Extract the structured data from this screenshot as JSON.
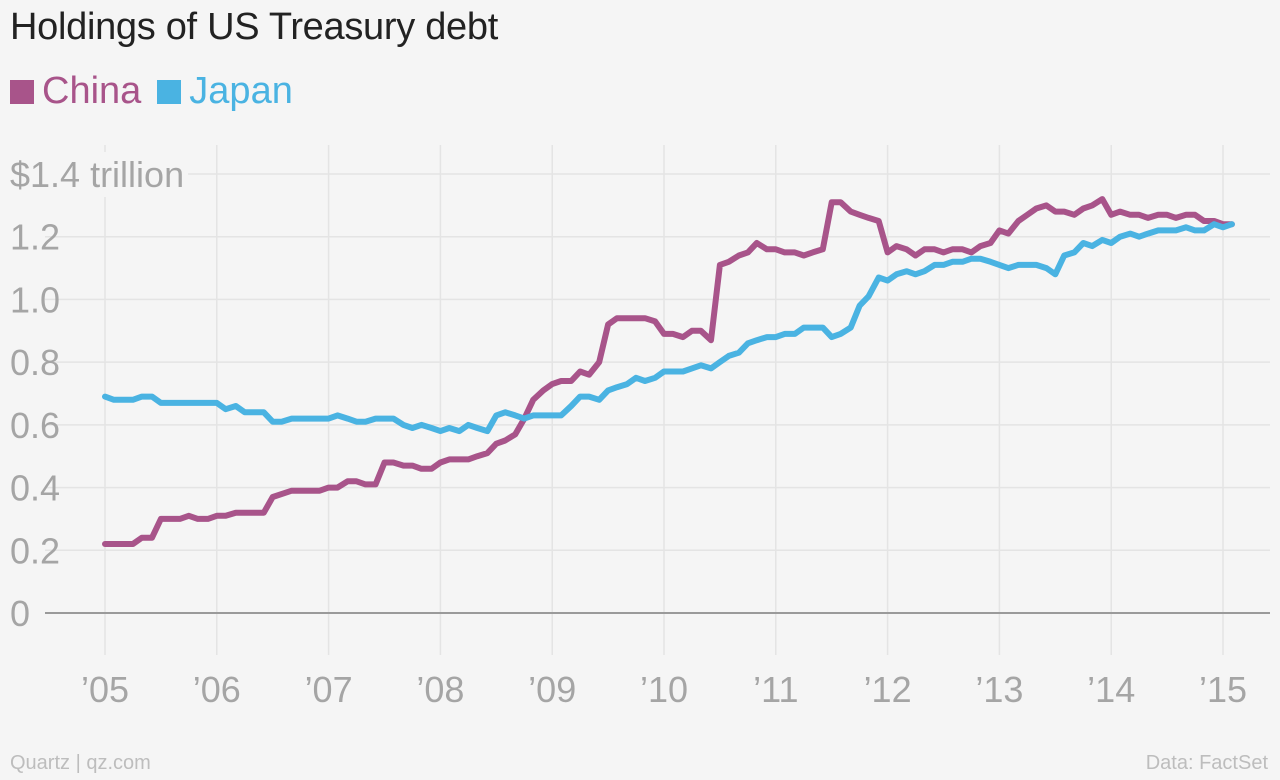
{
  "chart_data": {
    "type": "line",
    "title": "Holdings of US Treasury debt",
    "ylabel": "",
    "xlabel": "",
    "y_unit_label": "$1.4 trillion",
    "ylim": [
      0,
      1.4
    ],
    "xlim": [
      2004.9,
      2015.1
    ],
    "yticks": [
      {
        "value": 0,
        "label": "0"
      },
      {
        "value": 0.2,
        "label": "0.2"
      },
      {
        "value": 0.4,
        "label": "0.4"
      },
      {
        "value": 0.6,
        "label": "0.6"
      },
      {
        "value": 0.8,
        "label": "0.8"
      },
      {
        "value": 1.0,
        "label": "1.0"
      },
      {
        "value": 1.2,
        "label": "1.2"
      },
      {
        "value": 1.4,
        "label": "$1.4 trillion"
      }
    ],
    "xticks": [
      {
        "value": 2005,
        "label": "’05"
      },
      {
        "value": 2006,
        "label": "’06"
      },
      {
        "value": 2007,
        "label": "’07"
      },
      {
        "value": 2008,
        "label": "’08"
      },
      {
        "value": 2009,
        "label": "’09"
      },
      {
        "value": 2010,
        "label": "’10"
      },
      {
        "value": 2011,
        "label": "’11"
      },
      {
        "value": 2012,
        "label": "’12"
      },
      {
        "value": 2013,
        "label": "’13"
      },
      {
        "value": 2014,
        "label": "’14"
      },
      {
        "value": 2015,
        "label": "’15"
      }
    ],
    "grid": true,
    "legend_position": "top-left",
    "series": [
      {
        "name": "China",
        "color": "#a8548a",
        "points": [
          [
            2005.0,
            0.22
          ],
          [
            2005.25,
            0.22
          ],
          [
            2005.33,
            0.24
          ],
          [
            2005.42,
            0.24
          ],
          [
            2005.5,
            0.3
          ],
          [
            2005.67,
            0.3
          ],
          [
            2005.75,
            0.31
          ],
          [
            2005.83,
            0.3
          ],
          [
            2005.92,
            0.3
          ],
          [
            2006.0,
            0.31
          ],
          [
            2006.08,
            0.31
          ],
          [
            2006.17,
            0.32
          ],
          [
            2006.42,
            0.32
          ],
          [
            2006.5,
            0.37
          ],
          [
            2006.67,
            0.39
          ],
          [
            2006.92,
            0.39
          ],
          [
            2007.0,
            0.4
          ],
          [
            2007.08,
            0.4
          ],
          [
            2007.17,
            0.42
          ],
          [
            2007.25,
            0.42
          ],
          [
            2007.33,
            0.41
          ],
          [
            2007.42,
            0.41
          ],
          [
            2007.5,
            0.48
          ],
          [
            2007.58,
            0.48
          ],
          [
            2007.67,
            0.47
          ],
          [
            2007.75,
            0.47
          ],
          [
            2007.83,
            0.46
          ],
          [
            2007.92,
            0.46
          ],
          [
            2008.0,
            0.48
          ],
          [
            2008.08,
            0.49
          ],
          [
            2008.25,
            0.49
          ],
          [
            2008.33,
            0.5
          ],
          [
            2008.42,
            0.51
          ],
          [
            2008.5,
            0.54
          ],
          [
            2008.58,
            0.55
          ],
          [
            2008.67,
            0.57
          ],
          [
            2008.75,
            0.62
          ],
          [
            2008.83,
            0.68
          ],
          [
            2008.92,
            0.71
          ],
          [
            2009.0,
            0.73
          ],
          [
            2009.08,
            0.74
          ],
          [
            2009.17,
            0.74
          ],
          [
            2009.25,
            0.77
          ],
          [
            2009.33,
            0.76
          ],
          [
            2009.42,
            0.8
          ],
          [
            2009.5,
            0.92
          ],
          [
            2009.58,
            0.94
          ],
          [
            2009.83,
            0.94
          ],
          [
            2009.92,
            0.93
          ],
          [
            2010.0,
            0.89
          ],
          [
            2010.08,
            0.89
          ],
          [
            2010.17,
            0.88
          ],
          [
            2010.25,
            0.9
          ],
          [
            2010.33,
            0.9
          ],
          [
            2010.42,
            0.87
          ],
          [
            2010.5,
            1.11
          ],
          [
            2010.58,
            1.12
          ],
          [
            2010.67,
            1.14
          ],
          [
            2010.75,
            1.15
          ],
          [
            2010.83,
            1.18
          ],
          [
            2010.92,
            1.16
          ],
          [
            2011.0,
            1.16
          ],
          [
            2011.08,
            1.15
          ],
          [
            2011.17,
            1.15
          ],
          [
            2011.25,
            1.14
          ],
          [
            2011.33,
            1.15
          ],
          [
            2011.42,
            1.16
          ],
          [
            2011.5,
            1.31
          ],
          [
            2011.58,
            1.31
          ],
          [
            2011.67,
            1.28
          ],
          [
            2011.75,
            1.27
          ],
          [
            2011.83,
            1.26
          ],
          [
            2011.92,
            1.25
          ],
          [
            2012.0,
            1.15
          ],
          [
            2012.08,
            1.17
          ],
          [
            2012.17,
            1.16
          ],
          [
            2012.25,
            1.14
          ],
          [
            2012.33,
            1.16
          ],
          [
            2012.42,
            1.16
          ],
          [
            2012.5,
            1.15
          ],
          [
            2012.58,
            1.16
          ],
          [
            2012.67,
            1.16
          ],
          [
            2012.75,
            1.15
          ],
          [
            2012.83,
            1.17
          ],
          [
            2012.92,
            1.18
          ],
          [
            2013.0,
            1.22
          ],
          [
            2013.08,
            1.21
          ],
          [
            2013.17,
            1.25
          ],
          [
            2013.25,
            1.27
          ],
          [
            2013.33,
            1.29
          ],
          [
            2013.42,
            1.3
          ],
          [
            2013.5,
            1.28
          ],
          [
            2013.58,
            1.28
          ],
          [
            2013.67,
            1.27
          ],
          [
            2013.75,
            1.29
          ],
          [
            2013.83,
            1.3
          ],
          [
            2013.92,
            1.32
          ],
          [
            2014.0,
            1.27
          ],
          [
            2014.08,
            1.28
          ],
          [
            2014.17,
            1.27
          ],
          [
            2014.25,
            1.27
          ],
          [
            2014.33,
            1.26
          ],
          [
            2014.42,
            1.27
          ],
          [
            2014.5,
            1.27
          ],
          [
            2014.58,
            1.26
          ],
          [
            2014.67,
            1.27
          ],
          [
            2014.75,
            1.27
          ],
          [
            2014.83,
            1.25
          ],
          [
            2014.92,
            1.25
          ],
          [
            2015.0,
            1.24
          ],
          [
            2015.08,
            1.24
          ]
        ]
      },
      {
        "name": "Japan",
        "color": "#4ab3e2",
        "points": [
          [
            2005.0,
            0.69
          ],
          [
            2005.08,
            0.68
          ],
          [
            2005.25,
            0.68
          ],
          [
            2005.33,
            0.69
          ],
          [
            2005.42,
            0.69
          ],
          [
            2005.5,
            0.67
          ],
          [
            2005.92,
            0.67
          ],
          [
            2006.0,
            0.67
          ],
          [
            2006.08,
            0.65
          ],
          [
            2006.17,
            0.66
          ],
          [
            2006.25,
            0.64
          ],
          [
            2006.42,
            0.64
          ],
          [
            2006.5,
            0.61
          ],
          [
            2006.58,
            0.61
          ],
          [
            2006.67,
            0.62
          ],
          [
            2006.92,
            0.62
          ],
          [
            2007.0,
            0.62
          ],
          [
            2007.08,
            0.63
          ],
          [
            2007.17,
            0.62
          ],
          [
            2007.25,
            0.61
          ],
          [
            2007.33,
            0.61
          ],
          [
            2007.42,
            0.62
          ],
          [
            2007.58,
            0.62
          ],
          [
            2007.67,
            0.6
          ],
          [
            2007.75,
            0.59
          ],
          [
            2007.83,
            0.6
          ],
          [
            2007.92,
            0.59
          ],
          [
            2008.0,
            0.58
          ],
          [
            2008.08,
            0.59
          ],
          [
            2008.17,
            0.58
          ],
          [
            2008.25,
            0.6
          ],
          [
            2008.33,
            0.59
          ],
          [
            2008.42,
            0.58
          ],
          [
            2008.5,
            0.63
          ],
          [
            2008.58,
            0.64
          ],
          [
            2008.67,
            0.63
          ],
          [
            2008.75,
            0.62
          ],
          [
            2008.83,
            0.63
          ],
          [
            2009.0,
            0.63
          ],
          [
            2009.08,
            0.63
          ],
          [
            2009.17,
            0.66
          ],
          [
            2009.25,
            0.69
          ],
          [
            2009.33,
            0.69
          ],
          [
            2009.42,
            0.68
          ],
          [
            2009.5,
            0.71
          ],
          [
            2009.58,
            0.72
          ],
          [
            2009.67,
            0.73
          ],
          [
            2009.75,
            0.75
          ],
          [
            2009.83,
            0.74
          ],
          [
            2009.92,
            0.75
          ],
          [
            2010.0,
            0.77
          ],
          [
            2010.17,
            0.77
          ],
          [
            2010.25,
            0.78
          ],
          [
            2010.33,
            0.79
          ],
          [
            2010.42,
            0.78
          ],
          [
            2010.5,
            0.8
          ],
          [
            2010.58,
            0.82
          ],
          [
            2010.67,
            0.83
          ],
          [
            2010.75,
            0.86
          ],
          [
            2010.83,
            0.87
          ],
          [
            2010.92,
            0.88
          ],
          [
            2011.0,
            0.88
          ],
          [
            2011.08,
            0.89
          ],
          [
            2011.17,
            0.89
          ],
          [
            2011.25,
            0.91
          ],
          [
            2011.42,
            0.91
          ],
          [
            2011.5,
            0.88
          ],
          [
            2011.58,
            0.89
          ],
          [
            2011.67,
            0.91
          ],
          [
            2011.75,
            0.98
          ],
          [
            2011.83,
            1.01
          ],
          [
            2011.92,
            1.07
          ],
          [
            2012.0,
            1.06
          ],
          [
            2012.08,
            1.08
          ],
          [
            2012.17,
            1.09
          ],
          [
            2012.25,
            1.08
          ],
          [
            2012.33,
            1.09
          ],
          [
            2012.42,
            1.11
          ],
          [
            2012.5,
            1.11
          ],
          [
            2012.58,
            1.12
          ],
          [
            2012.67,
            1.12
          ],
          [
            2012.75,
            1.13
          ],
          [
            2012.83,
            1.13
          ],
          [
            2012.92,
            1.12
          ],
          [
            2013.0,
            1.11
          ],
          [
            2013.08,
            1.1
          ],
          [
            2013.17,
            1.11
          ],
          [
            2013.33,
            1.11
          ],
          [
            2013.42,
            1.1
          ],
          [
            2013.5,
            1.08
          ],
          [
            2013.58,
            1.14
          ],
          [
            2013.67,
            1.15
          ],
          [
            2013.75,
            1.18
          ],
          [
            2013.83,
            1.17
          ],
          [
            2013.92,
            1.19
          ],
          [
            2014.0,
            1.18
          ],
          [
            2014.08,
            1.2
          ],
          [
            2014.17,
            1.21
          ],
          [
            2014.25,
            1.2
          ],
          [
            2014.33,
            1.21
          ],
          [
            2014.42,
            1.22
          ],
          [
            2014.58,
            1.22
          ],
          [
            2014.67,
            1.23
          ],
          [
            2014.75,
            1.22
          ],
          [
            2014.83,
            1.22
          ],
          [
            2014.92,
            1.24
          ],
          [
            2015.0,
            1.23
          ],
          [
            2015.08,
            1.24
          ]
        ]
      }
    ]
  },
  "header": {
    "title": "Holdings of US Treasury debt"
  },
  "legend": {
    "china_label": "China",
    "japan_label": "Japan"
  },
  "footer": {
    "left": "Quartz | qz.com",
    "right": "Data: FactSet"
  }
}
